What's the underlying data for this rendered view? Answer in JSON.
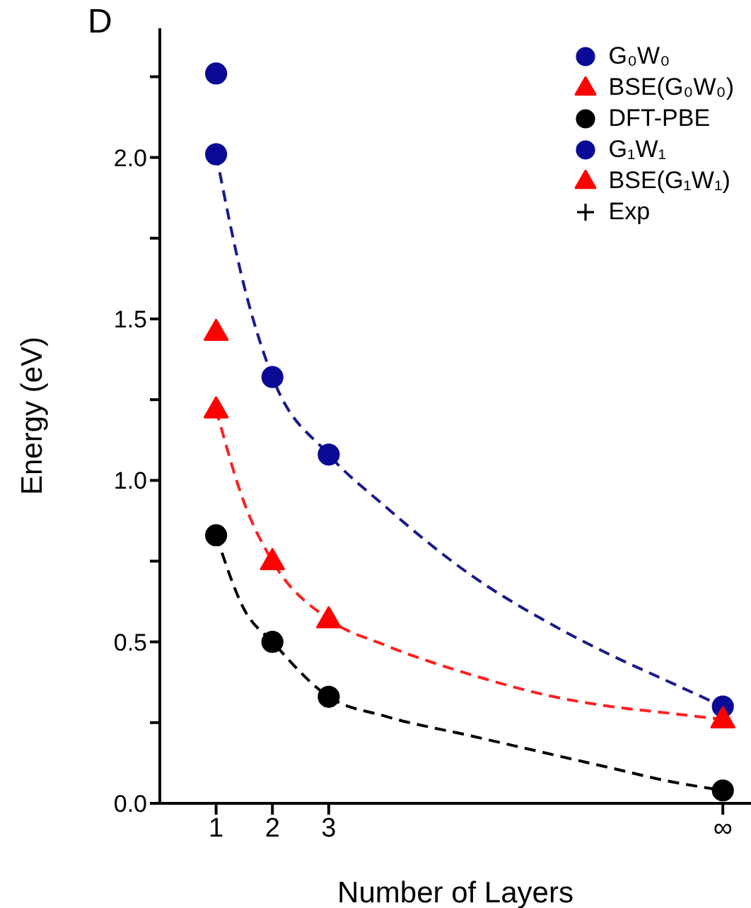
{
  "chart_data": {
    "type": "scatter",
    "annotations": [
      "D"
    ],
    "xlabel": "Number of Layers",
    "ylabel": "Energy (eV)",
    "xlim": [
      0,
      10.5
    ],
    "xticks": [
      1,
      2,
      3,
      {
        "value": 10,
        "label": "∞"
      }
    ],
    "ylim": [
      0,
      2.4
    ],
    "yticks": [
      {
        "value": 0,
        "label": "0.0"
      },
      {
        "value": 0.25,
        "label": null
      },
      {
        "value": 0.5,
        "label": "0.5"
      },
      {
        "value": 0.75,
        "label": null
      },
      {
        "value": 1,
        "label": "1.0"
      },
      {
        "value": 1.25,
        "label": null
      },
      {
        "value": 1.5,
        "label": "1.5"
      },
      {
        "value": 1.75,
        "label": null
      },
      {
        "value": 2,
        "label": "2.0"
      },
      {
        "value": 2.25,
        "label": null
      }
    ],
    "grid": false,
    "legend": "top right",
    "series": [
      {
        "type": "line",
        "color": "#1a1a8c",
        "line_style": "dashed",
        "marker": "none",
        "x": [
          1,
          1.5,
          2,
          3,
          4,
          5.5,
          7,
          8,
          9,
          10
        ],
        "values": [
          2.01,
          1.6,
          1.32,
          1.08,
          0.92,
          0.71,
          0.55,
          0.46,
          0.38,
          0.3
        ]
      },
      {
        "type": "line",
        "color": "#ff2020",
        "line_style": "dashed",
        "marker": "none",
        "x": [
          1,
          1.5,
          2,
          3,
          4,
          5.5,
          7,
          8,
          9,
          10
        ],
        "values": [
          1.22,
          0.93,
          0.75,
          0.57,
          0.49,
          0.4,
          0.33,
          0.3,
          0.28,
          0.26
        ]
      },
      {
        "type": "line",
        "color": "#000000",
        "line_style": "dashed",
        "marker": "none",
        "x": [
          1,
          1.5,
          2,
          3,
          4,
          5.5,
          7,
          8,
          9,
          10
        ],
        "values": [
          0.83,
          0.6,
          0.5,
          0.33,
          0.27,
          0.21,
          0.15,
          0.11,
          0.07,
          0.04
        ]
      },
      {
        "name": "G₀W₀",
        "color": "#0a0a96",
        "marker": "circle",
        "x": [
          1,
          2,
          3,
          10
        ],
        "values": [
          2.01,
          1.32,
          1.08,
          0.3
        ]
      },
      {
        "name": "BSE(G₀W₀)",
        "color": "#ff0000",
        "marker": "triangle",
        "x": [
          1,
          2,
          3,
          10
        ],
        "values": [
          1.22,
          0.75,
          0.57,
          0.26
        ]
      },
      {
        "name": "DFT-PBE",
        "color": "#000000",
        "marker": "circle",
        "x": [
          1,
          2,
          3,
          10
        ],
        "values": [
          0.83,
          0.5,
          0.33,
          0.04
        ]
      },
      {
        "name": "G₁W₁",
        "color": "#0a0a96",
        "marker": "circle",
        "x": [
          1
        ],
        "values": [
          2.26
        ]
      },
      {
        "name": "BSE(G₁W₁)",
        "color": "#ff0000",
        "marker": "triangle",
        "x": [
          1
        ],
        "values": [
          1.46
        ]
      },
      {
        "name": "Exp",
        "color": "#000000",
        "marker": "cross"
      }
    ]
  }
}
